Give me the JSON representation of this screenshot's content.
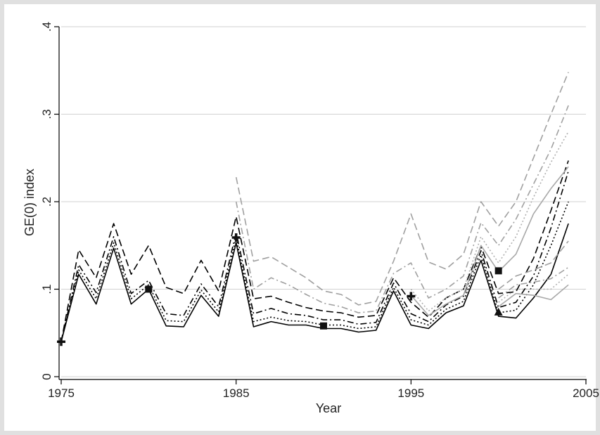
{
  "chart_data": {
    "type": "line",
    "xlabel": "Year",
    "ylabel": "GE(0) index",
    "xlim": [
      1975,
      2005
    ],
    "ylim": [
      0,
      0.4
    ],
    "xticks": [
      1975,
      1985,
      1995,
      2005
    ],
    "yticks": [
      0,
      0.1,
      0.2,
      0.3,
      0.4
    ],
    "ytick_labels": [
      "0",
      ".1",
      ".2",
      ".3",
      ".4"
    ],
    "grid": true,
    "series": [
      {
        "color": "#000000",
        "dash": "",
        "x": [
          1975,
          1976,
          1977,
          1978,
          1979,
          1980,
          1981,
          1982,
          1983,
          1984,
          1985,
          1986,
          1987,
          1988,
          1989,
          1990,
          1991,
          1992,
          1993,
          1994,
          1995,
          1996,
          1997,
          1998,
          1999,
          2000,
          2001,
          2002,
          2003,
          2004
        ],
        "y": [
          0.04,
          0.117,
          0.083,
          0.147,
          0.083,
          0.1,
          0.058,
          0.057,
          0.093,
          0.069,
          0.153,
          0.057,
          0.063,
          0.059,
          0.059,
          0.055,
          0.055,
          0.051,
          0.053,
          0.098,
          0.059,
          0.055,
          0.073,
          0.081,
          0.133,
          0.069,
          0.067,
          0.09,
          0.117,
          0.175
        ]
      },
      {
        "color": "#000000",
        "dash": "2,3",
        "x": [
          1975,
          1976,
          1977,
          1978,
          1979,
          1980,
          1981,
          1982,
          1983,
          1984,
          1985,
          1986,
          1987,
          1988,
          1989,
          1990,
          1991,
          1992,
          1993,
          1994,
          1995,
          1996,
          1997,
          1998,
          1999,
          2000,
          2001,
          2002,
          2003,
          2004
        ],
        "y": [
          0.04,
          0.122,
          0.089,
          0.153,
          0.089,
          0.105,
          0.064,
          0.063,
          0.099,
          0.074,
          0.159,
          0.063,
          0.068,
          0.064,
          0.063,
          0.059,
          0.059,
          0.055,
          0.057,
          0.102,
          0.065,
          0.059,
          0.077,
          0.086,
          0.139,
          0.073,
          0.076,
          0.105,
          0.15,
          0.2
        ]
      },
      {
        "color": "#000000",
        "dash": "9,4,2,4",
        "x": [
          1975,
          1976,
          1977,
          1978,
          1979,
          1980,
          1981,
          1982,
          1983,
          1984,
          1985,
          1986,
          1987,
          1988,
          1989,
          1990,
          1991,
          1992,
          1993,
          1994,
          1995,
          1996,
          1997,
          1998,
          1999,
          2000,
          2001,
          2002,
          2003,
          2004
        ],
        "y": [
          0.04,
          0.128,
          0.096,
          0.16,
          0.095,
          0.11,
          0.072,
          0.07,
          0.106,
          0.08,
          0.165,
          0.072,
          0.078,
          0.072,
          0.07,
          0.065,
          0.065,
          0.06,
          0.062,
          0.107,
          0.072,
          0.063,
          0.082,
          0.092,
          0.144,
          0.079,
          0.085,
          0.115,
          0.17,
          0.235
        ]
      },
      {
        "color": "#000000",
        "dash": "10,5",
        "x": [
          1975,
          1976,
          1977,
          1978,
          1979,
          1980,
          1981,
          1982,
          1983,
          1984,
          1985,
          1986,
          1987,
          1988,
          1989,
          1990,
          1991,
          1992,
          1993,
          1994,
          1995,
          1996,
          1997,
          1998,
          1999,
          2000,
          2001,
          2002,
          2003,
          2004
        ],
        "y": [
          0.04,
          0.145,
          0.113,
          0.175,
          0.117,
          0.15,
          0.102,
          0.095,
          0.133,
          0.098,
          0.183,
          0.089,
          0.092,
          0.085,
          0.079,
          0.075,
          0.073,
          0.068,
          0.07,
          0.113,
          0.085,
          0.068,
          0.09,
          0.1,
          0.149,
          0.095,
          0.097,
          0.135,
          0.19,
          0.247
        ]
      },
      {
        "color": "#a8a8a8",
        "dash": "",
        "x": [
          1995,
          1996,
          1997,
          1998,
          1999,
          2000,
          2001,
          2002,
          2003,
          2004
        ],
        "y": [
          0.093,
          0.07,
          0.083,
          0.093,
          0.15,
          0.12,
          0.14,
          0.186,
          0.215,
          0.24
        ]
      },
      {
        "color": "#b0b0b0",
        "dash": "2,3",
        "x": [
          1995,
          1996,
          1997,
          1998,
          1999,
          2000,
          2001,
          2002,
          2003,
          2004
        ],
        "y": [
          0.1,
          0.075,
          0.09,
          0.1,
          0.16,
          0.13,
          0.16,
          0.205,
          0.245,
          0.28
        ]
      },
      {
        "color": "#a0a0a0",
        "dash": "9,4,2,4",
        "x": [
          1985,
          1986,
          1987,
          1988,
          1989,
          1990,
          1991,
          1992,
          1993,
          1994,
          1995,
          1996,
          1997,
          1998,
          1999,
          2000,
          2001,
          2002,
          2003,
          2004
        ],
        "y": [
          0.2,
          0.1,
          0.113,
          0.105,
          0.094,
          0.084,
          0.08,
          0.073,
          0.075,
          0.118,
          0.13,
          0.09,
          0.1,
          0.115,
          0.176,
          0.15,
          0.18,
          0.22,
          0.26,
          0.31
        ]
      },
      {
        "color": "#a0a0a0",
        "dash": "10,5",
        "x": [
          1985,
          1986,
          1987,
          1988,
          1989,
          1990,
          1991,
          1992,
          1993,
          1994,
          1995,
          1996,
          1997,
          1998,
          1999,
          2000,
          2001,
          2002,
          2003,
          2004
        ],
        "y": [
          0.228,
          0.132,
          0.137,
          0.125,
          0.113,
          0.098,
          0.094,
          0.082,
          0.086,
          0.132,
          0.186,
          0.131,
          0.123,
          0.14,
          0.2,
          0.172,
          0.2,
          0.25,
          0.3,
          0.348
        ]
      },
      {
        "color": "#a8a8a8",
        "dash": "",
        "x": [
          2000,
          2001,
          2002,
          2003,
          2004
        ],
        "y": [
          0.08,
          0.095,
          0.093,
          0.088,
          0.105
        ]
      },
      {
        "color": "#b0b0b0",
        "dash": "2,3",
        "x": [
          2000,
          2001,
          2002,
          2003,
          2004
        ],
        "y": [
          0.085,
          0.1,
          0.1,
          0.1,
          0.117
        ]
      },
      {
        "color": "#a0a0a0",
        "dash": "9,4,2,4",
        "x": [
          2000,
          2001,
          2002,
          2003,
          2004
        ],
        "y": [
          0.09,
          0.105,
          0.108,
          0.112,
          0.125
        ]
      },
      {
        "color": "#a0a0a0",
        "dash": "10,5",
        "x": [
          2000,
          2001,
          2002,
          2003,
          2004
        ],
        "y": [
          0.1,
          0.115,
          0.122,
          0.13,
          0.155
        ]
      }
    ],
    "markers": [
      {
        "shape": "plus",
        "x": 1975,
        "y": 0.04
      },
      {
        "shape": "square",
        "x": 1980,
        "y": 0.1
      },
      {
        "shape": "plus",
        "x": 1985,
        "y": 0.159
      },
      {
        "shape": "square",
        "x": 1990,
        "y": 0.058
      },
      {
        "shape": "plus",
        "x": 1995,
        "y": 0.092
      },
      {
        "shape": "square",
        "x": 2000,
        "y": 0.121
      },
      {
        "shape": "triangle",
        "x": 2000,
        "y": 0.074
      }
    ]
  }
}
